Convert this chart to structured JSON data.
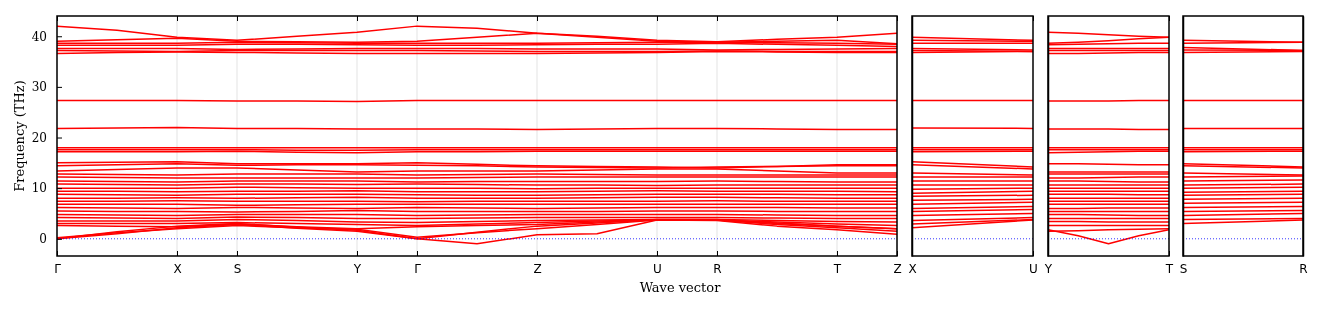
{
  "chart_data": [
    {
      "type": "line",
      "xlabel": "Wave vector",
      "ylabel": "Frequency (THz)",
      "grid": "x",
      "line_style": "solid",
      "marker": "none",
      "ylim": [
        -3.4,
        44
      ],
      "yticks": [
        0,
        10,
        20,
        30,
        40
      ],
      "categories": [
        "Γ",
        null,
        "X",
        "S",
        null,
        "Y",
        "Γ",
        null,
        "Z",
        null,
        "U",
        "R",
        null,
        "T",
        "Z"
      ],
      "ref_lines": [
        {
          "axis": "y",
          "value": 0,
          "color": "#0000ff",
          "line_style": "dotted"
        }
      ],
      "series": [
        {
          "color": "#ff0000",
          "values": [
            42.0,
            41.2,
            39.8,
            39.2,
            40.0,
            40.8,
            42.0,
            41.6,
            40.6,
            40.0,
            39.2,
            38.9,
            39.4,
            39.8,
            40.6
          ]
        },
        {
          "color": "#ff0000",
          "values": [
            39.0,
            39.3,
            39.6,
            39.0,
            38.9,
            38.8,
            39.0,
            39.8,
            40.6,
            39.8,
            39.0,
            38.8,
            39.0,
            39.2,
            38.5
          ]
        },
        {
          "color": "#ff0000",
          "values": [
            38.6,
            38.6,
            38.6,
            38.8,
            38.7,
            38.6,
            38.6,
            38.6,
            38.6,
            38.7,
            38.8,
            38.8,
            38.7,
            38.6,
            38.4
          ]
        },
        {
          "color": "#ff0000",
          "values": [
            38.2,
            38.2,
            38.2,
            38.4,
            38.4,
            38.3,
            38.2,
            38.2,
            38.3,
            38.4,
            38.4,
            38.6,
            38.4,
            38.2,
            38.0
          ]
        },
        {
          "color": "#ff0000",
          "values": [
            37.6,
            37.6,
            37.6,
            37.4,
            37.5,
            37.6,
            37.6,
            37.6,
            37.5,
            37.5,
            37.5,
            37.3,
            37.4,
            37.5,
            37.6
          ]
        },
        {
          "color": "#ff0000",
          "values": [
            37.2,
            37.1,
            37.0,
            37.2,
            37.2,
            37.2,
            37.2,
            37.1,
            37.0,
            37.0,
            37.0,
            37.1,
            37.0,
            37.0,
            37.0
          ]
        },
        {
          "color": "#ff0000",
          "values": [
            36.6,
            36.8,
            36.9,
            36.8,
            36.7,
            36.6,
            36.6,
            36.6,
            36.6,
            36.7,
            36.8,
            37.0,
            36.9,
            36.8,
            36.8
          ]
        },
        {
          "color": "#ff0000",
          "values": [
            27.3,
            27.3,
            27.3,
            27.2,
            27.2,
            27.1,
            27.3,
            27.3,
            27.3,
            27.3,
            27.3,
            27.3,
            27.3,
            27.3,
            27.3
          ]
        },
        {
          "color": "#ff0000",
          "values": [
            21.8,
            21.9,
            22.0,
            21.8,
            21.8,
            21.7,
            21.7,
            21.7,
            21.6,
            21.7,
            21.8,
            21.8,
            21.7,
            21.6,
            21.6
          ]
        },
        {
          "color": "#ff0000",
          "values": [
            18.0,
            18.0,
            18.0,
            18.0,
            18.0,
            18.0,
            18.0,
            18.0,
            18.0,
            18.0,
            18.0,
            18.0,
            18.0,
            18.0,
            18.0
          ]
        },
        {
          "color": "#ff0000",
          "values": [
            17.6,
            17.6,
            17.6,
            17.6,
            17.5,
            17.5,
            17.6,
            17.6,
            17.6,
            17.6,
            17.6,
            17.6,
            17.6,
            17.6,
            17.6
          ]
        },
        {
          "color": "#ff0000",
          "values": [
            17.2,
            17.2,
            17.2,
            17.3,
            17.1,
            17.0,
            17.2,
            17.2,
            17.3,
            17.3,
            17.3,
            17.3,
            17.3,
            17.3,
            17.3
          ]
        },
        {
          "color": "#ff0000",
          "values": [
            15.0,
            15.1,
            15.2,
            14.8,
            14.8,
            14.8,
            15.0,
            14.7,
            14.4,
            14.3,
            14.2,
            14.0,
            14.3,
            14.6,
            14.6
          ]
        },
        {
          "color": "#ff0000",
          "values": [
            14.4,
            14.6,
            14.8,
            14.5,
            14.6,
            14.6,
            14.5,
            14.4,
            14.2,
            14.1,
            14.0,
            14.2,
            14.3,
            14.4,
            14.4
          ]
        },
        {
          "color": "#ff0000",
          "values": [
            13.4,
            13.7,
            14.0,
            14.0,
            13.6,
            13.2,
            13.4,
            13.4,
            13.4,
            13.6,
            13.8,
            13.8,
            13.4,
            13.0,
            13.0
          ]
        },
        {
          "color": "#ff0000",
          "values": [
            12.8,
            12.7,
            12.6,
            12.8,
            12.8,
            12.8,
            12.6,
            12.7,
            12.8,
            12.7,
            12.6,
            12.6,
            12.6,
            12.6,
            12.6
          ]
        },
        {
          "color": "#ff0000",
          "values": [
            12.2,
            12.1,
            12.0,
            12.0,
            12.0,
            12.0,
            12.0,
            12.1,
            12.2,
            12.2,
            12.2,
            12.2,
            12.2,
            12.2,
            12.2
          ]
        },
        {
          "color": "#ff0000",
          "values": [
            11.4,
            11.3,
            11.2,
            11.4,
            11.4,
            11.4,
            11.2,
            11.3,
            11.3,
            11.3,
            11.3,
            11.4,
            11.3,
            11.2,
            11.2
          ]
        },
        {
          "color": "#ff0000",
          "values": [
            10.8,
            10.7,
            10.6,
            10.8,
            10.8,
            10.7,
            10.8,
            10.7,
            10.6,
            10.6,
            10.5,
            10.6,
            10.6,
            10.6,
            10.6
          ]
        },
        {
          "color": "#ff0000",
          "values": [
            10.0,
            10.0,
            10.0,
            10.2,
            10.1,
            10.0,
            10.0,
            10.0,
            9.9,
            10.0,
            10.0,
            10.0,
            10.0,
            10.0,
            10.0
          ]
        },
        {
          "color": "#ff0000",
          "values": [
            9.4,
            9.4,
            9.3,
            9.4,
            9.4,
            9.5,
            9.3,
            9.3,
            9.3,
            9.4,
            9.5,
            9.4,
            9.4,
            9.4,
            9.3
          ]
        },
        {
          "color": "#ff0000",
          "values": [
            8.8,
            8.7,
            8.6,
            8.8,
            8.8,
            8.8,
            8.7,
            8.6,
            8.6,
            8.7,
            8.8,
            8.8,
            8.8,
            8.7,
            8.7
          ]
        },
        {
          "color": "#ff0000",
          "values": [
            8.0,
            8.0,
            8.1,
            8.0,
            8.1,
            8.2,
            8.0,
            8.0,
            8.0,
            8.1,
            8.2,
            8.2,
            8.1,
            8.0,
            8.0
          ]
        },
        {
          "color": "#ff0000",
          "values": [
            7.4,
            7.4,
            7.5,
            7.4,
            7.4,
            7.4,
            7.3,
            7.4,
            7.4,
            7.4,
            7.4,
            7.5,
            7.4,
            7.4,
            7.4
          ]
        },
        {
          "color": "#ff0000",
          "values": [
            6.8,
            6.8,
            6.8,
            6.6,
            6.7,
            6.8,
            6.8,
            6.8,
            6.8,
            6.8,
            6.8,
            6.8,
            6.8,
            6.8,
            6.8
          ]
        },
        {
          "color": "#ff0000",
          "values": [
            6.2,
            6.1,
            6.0,
            6.2,
            6.1,
            6.0,
            6.2,
            6.1,
            6.0,
            6.1,
            6.2,
            6.2,
            6.2,
            6.1,
            6.1
          ]
        },
        {
          "color": "#ff0000",
          "values": [
            5.5,
            5.4,
            5.4,
            5.3,
            5.4,
            5.6,
            5.4,
            5.4,
            5.4,
            5.4,
            5.5,
            5.5,
            5.4,
            5.4,
            5.4
          ]
        },
        {
          "color": "#ff0000",
          "values": [
            4.8,
            4.7,
            4.6,
            4.8,
            4.8,
            4.8,
            4.6,
            4.7,
            4.8,
            4.8,
            4.8,
            4.8,
            4.7,
            4.6,
            4.6
          ]
        },
        {
          "color": "#ff0000",
          "values": [
            4.2,
            4.1,
            4.0,
            4.3,
            4.2,
            4.0,
            4.0,
            4.1,
            4.2,
            4.2,
            4.2,
            4.2,
            4.1,
            4.0,
            4.0
          ]
        },
        {
          "color": "#ff0000",
          "values": [
            3.5,
            3.5,
            3.5,
            3.8,
            3.6,
            3.3,
            3.2,
            3.4,
            3.6,
            3.7,
            3.8,
            3.8,
            3.6,
            3.4,
            3.3
          ]
        },
        {
          "color": "#ff0000",
          "values": [
            3.0,
            3.0,
            3.0,
            3.2,
            3.0,
            2.8,
            2.6,
            2.9,
            3.2,
            3.5,
            3.7,
            3.7,
            3.3,
            2.9,
            2.6
          ]
        },
        {
          "color": "#ff0000",
          "values": [
            2.6,
            2.5,
            2.4,
            2.9,
            2.4,
            2.0,
            2.4,
            2.6,
            2.8,
            3.3,
            3.7,
            3.7,
            3.1,
            2.5,
            2.0
          ]
        },
        {
          "color": "#ff0000",
          "values": [
            0,
            1.4,
            2.5,
            3.0,
            2.3,
            1.7,
            0,
            1.3,
            2.5,
            3.1,
            3.8,
            3.8,
            3.0,
            2.5,
            2.0
          ]
        },
        {
          "color": "#ff0000",
          "values": [
            0.2,
            1.2,
            2.0,
            2.6,
            2.2,
            1.9,
            0.3,
            1.2,
            2.0,
            2.8,
            3.7,
            3.7,
            2.8,
            2.2,
            1.5
          ]
        },
        {
          "color": "#ff0000",
          "values": [
            0,
            1.0,
            2.2,
            2.8,
            2.1,
            1.5,
            0,
            -1.0,
            0.8,
            1.0,
            3.7,
            3.6,
            2.5,
            1.8,
            0.9
          ]
        }
      ]
    },
    {
      "type": "line",
      "line_style": "solid",
      "marker": "none",
      "tick_labels": "x",
      "ylim": [
        -3.4,
        44
      ],
      "categories": [
        "X",
        "U"
      ],
      "ref_lines": [
        {
          "axis": "y",
          "value": 0,
          "color": "#0000ff",
          "line_style": "dotted"
        }
      ],
      "series": [
        {
          "color": "#ff0000",
          "values": [
            39.8,
            39.2
          ]
        },
        {
          "color": "#ff0000",
          "values": [
            39.2,
            39.0
          ]
        },
        {
          "color": "#ff0000",
          "values": [
            38.6,
            38.6
          ]
        },
        {
          "color": "#ff0000",
          "values": [
            37.6,
            37.3
          ]
        },
        {
          "color": "#ff0000",
          "values": [
            37.2,
            37.0
          ]
        },
        {
          "color": "#ff0000",
          "values": [
            36.8,
            37.0
          ]
        },
        {
          "color": "#ff0000",
          "values": [
            27.3,
            27.3
          ]
        },
        {
          "color": "#ff0000",
          "values": [
            21.9,
            21.8
          ]
        },
        {
          "color": "#ff0000",
          "values": [
            18.0,
            18.0
          ]
        },
        {
          "color": "#ff0000",
          "values": [
            17.6,
            17.6
          ]
        },
        {
          "color": "#ff0000",
          "values": [
            17.2,
            17.3
          ]
        },
        {
          "color": "#ff0000",
          "values": [
            15.2,
            14.2
          ]
        },
        {
          "color": "#ff0000",
          "values": [
            14.6,
            13.8
          ]
        },
        {
          "color": "#ff0000",
          "values": [
            13.0,
            12.6
          ]
        },
        {
          "color": "#ff0000",
          "values": [
            12.2,
            12.2
          ]
        },
        {
          "color": "#ff0000",
          "values": [
            11.4,
            11.4
          ]
        },
        {
          "color": "#ff0000",
          "values": [
            10.6,
            10.6
          ]
        },
        {
          "color": "#ff0000",
          "values": [
            9.8,
            10.0
          ]
        },
        {
          "color": "#ff0000",
          "values": [
            9.0,
            9.4
          ]
        },
        {
          "color": "#ff0000",
          "values": [
            8.4,
            8.6
          ]
        },
        {
          "color": "#ff0000",
          "values": [
            7.6,
            7.8
          ]
        },
        {
          "color": "#ff0000",
          "values": [
            6.8,
            7.2
          ]
        },
        {
          "color": "#ff0000",
          "values": [
            6.0,
            6.4
          ]
        },
        {
          "color": "#ff0000",
          "values": [
            5.4,
            5.8
          ]
        },
        {
          "color": "#ff0000",
          "values": [
            4.6,
            5.0
          ]
        },
        {
          "color": "#ff0000",
          "values": [
            3.6,
            4.2
          ]
        },
        {
          "color": "#ff0000",
          "values": [
            2.9,
            3.8
          ]
        },
        {
          "color": "#ff0000",
          "values": [
            2.2,
            3.7
          ]
        }
      ]
    },
    {
      "type": "line",
      "line_style": "solid",
      "marker": "none",
      "tick_labels": "x",
      "ylim": [
        -3.4,
        44
      ],
      "categories": [
        "Y",
        null,
        null,
        null,
        "T"
      ],
      "ref_lines": [
        {
          "axis": "y",
          "value": 0,
          "color": "#0000ff",
          "line_style": "dotted"
        }
      ],
      "series": [
        {
          "color": "#ff0000",
          "values": [
            40.8,
            40.6,
            40.3,
            40.0,
            39.8
          ]
        },
        {
          "color": "#ff0000",
          "values": [
            38.6,
            38.8,
            39.1,
            39.5,
            39.8
          ]
        },
        {
          "color": "#ff0000",
          "values": [
            38.3,
            38.4,
            38.5,
            38.6,
            38.6
          ]
        },
        {
          "color": "#ff0000",
          "values": [
            37.6,
            37.6,
            37.6,
            37.6,
            37.6
          ]
        },
        {
          "color": "#ff0000",
          "values": [
            37.2,
            37.2,
            37.2,
            37.2,
            37.2
          ]
        },
        {
          "color": "#ff0000",
          "values": [
            36.6,
            36.6,
            36.7,
            36.8,
            36.8
          ]
        },
        {
          "color": "#ff0000",
          "values": [
            27.2,
            27.2,
            27.2,
            27.3,
            27.3
          ]
        },
        {
          "color": "#ff0000",
          "values": [
            21.7,
            21.7,
            21.7,
            21.6,
            21.6
          ]
        },
        {
          "color": "#ff0000",
          "values": [
            18.0,
            18.0,
            18.0,
            18.0,
            18.0
          ]
        },
        {
          "color": "#ff0000",
          "values": [
            17.6,
            17.6,
            17.6,
            17.6,
            17.6
          ]
        },
        {
          "color": "#ff0000",
          "values": [
            17.0,
            17.1,
            17.2,
            17.3,
            17.3
          ]
        },
        {
          "color": "#ff0000",
          "values": [
            14.8,
            14.8,
            14.7,
            14.6,
            14.6
          ]
        },
        {
          "color": "#ff0000",
          "values": [
            13.2,
            13.2,
            13.2,
            13.2,
            13.2
          ]
        },
        {
          "color": "#ff0000",
          "values": [
            12.8,
            12.8,
            12.8,
            12.8,
            12.8
          ]
        },
        {
          "color": "#ff0000",
          "values": [
            12.0,
            12.0,
            12.1,
            12.2,
            12.2
          ]
        },
        {
          "color": "#ff0000",
          "values": [
            11.4,
            11.4,
            11.3,
            11.2,
            11.2
          ]
        },
        {
          "color": "#ff0000",
          "values": [
            10.6,
            10.6,
            10.6,
            10.6,
            10.6
          ]
        },
        {
          "color": "#ff0000",
          "values": [
            10.0,
            10.0,
            10.0,
            10.0,
            10.0
          ]
        },
        {
          "color": "#ff0000",
          "values": [
            9.4,
            9.4,
            9.4,
            9.4,
            9.4
          ]
        },
        {
          "color": "#ff0000",
          "values": [
            8.8,
            8.8,
            8.8,
            8.7,
            8.7
          ]
        },
        {
          "color": "#ff0000",
          "values": [
            8.0,
            8.0,
            8.0,
            8.0,
            8.0
          ]
        },
        {
          "color": "#ff0000",
          "values": [
            7.4,
            7.4,
            7.4,
            7.4,
            7.4
          ]
        },
        {
          "color": "#ff0000",
          "values": [
            6.8,
            6.8,
            6.8,
            6.8,
            6.8
          ]
        },
        {
          "color": "#ff0000",
          "values": [
            6.0,
            6.0,
            6.1,
            6.1,
            6.1
          ]
        },
        {
          "color": "#ff0000",
          "values": [
            5.4,
            5.4,
            5.4,
            5.4,
            5.4
          ]
        },
        {
          "color": "#ff0000",
          "values": [
            4.8,
            4.8,
            4.7,
            4.6,
            4.6
          ]
        },
        {
          "color": "#ff0000",
          "values": [
            4.0,
            4.0,
            4.0,
            4.0,
            4.0
          ]
        },
        {
          "color": "#ff0000",
          "values": [
            3.4,
            3.4,
            3.3,
            3.3,
            3.3
          ]
        },
        {
          "color": "#ff0000",
          "values": [
            2.6,
            2.6,
            2.6,
            2.6,
            2.6
          ]
        },
        {
          "color": "#ff0000",
          "values": [
            1.5,
            1.6,
            1.8,
            1.9,
            2.0
          ]
        },
        {
          "color": "#ff0000",
          "values": [
            1.8,
            0.6,
            -1.0,
            0.6,
            1.8
          ]
        }
      ]
    },
    {
      "type": "line",
      "line_style": "solid",
      "marker": "none",
      "tick_labels": "x",
      "ylim": [
        -3.4,
        44
      ],
      "categories": [
        "S",
        "R"
      ],
      "ref_lines": [
        {
          "axis": "y",
          "value": 0,
          "color": "#0000ff",
          "line_style": "dotted"
        }
      ],
      "series": [
        {
          "color": "#ff0000",
          "values": [
            39.2,
            38.8
          ]
        },
        {
          "color": "#ff0000",
          "values": [
            38.6,
            38.8
          ]
        },
        {
          "color": "#ff0000",
          "values": [
            37.8,
            37.2
          ]
        },
        {
          "color": "#ff0000",
          "values": [
            37.3,
            37.2
          ]
        },
        {
          "color": "#ff0000",
          "values": [
            36.8,
            37.0
          ]
        },
        {
          "color": "#ff0000",
          "values": [
            27.3,
            27.3
          ]
        },
        {
          "color": "#ff0000",
          "values": [
            21.8,
            21.8
          ]
        },
        {
          "color": "#ff0000",
          "values": [
            18.0,
            18.0
          ]
        },
        {
          "color": "#ff0000",
          "values": [
            17.6,
            17.6
          ]
        },
        {
          "color": "#ff0000",
          "values": [
            17.2,
            17.3
          ]
        },
        {
          "color": "#ff0000",
          "values": [
            14.8,
            14.2
          ]
        },
        {
          "color": "#ff0000",
          "values": [
            14.4,
            14.0
          ]
        },
        {
          "color": "#ff0000",
          "values": [
            13.0,
            12.6
          ]
        },
        {
          "color": "#ff0000",
          "values": [
            12.2,
            12.4
          ]
        },
        {
          "color": "#ff0000",
          "values": [
            11.4,
            11.6
          ]
        },
        {
          "color": "#ff0000",
          "values": [
            10.6,
            10.8
          ]
        },
        {
          "color": "#ff0000",
          "values": [
            10.0,
            10.2
          ]
        },
        {
          "color": "#ff0000",
          "values": [
            9.2,
            9.4
          ]
        },
        {
          "color": "#ff0000",
          "values": [
            8.6,
            8.8
          ]
        },
        {
          "color": "#ff0000",
          "values": [
            7.8,
            8.0
          ]
        },
        {
          "color": "#ff0000",
          "values": [
            7.0,
            7.2
          ]
        },
        {
          "color": "#ff0000",
          "values": [
            6.2,
            6.4
          ]
        },
        {
          "color": "#ff0000",
          "values": [
            5.4,
            5.6
          ]
        },
        {
          "color": "#ff0000",
          "values": [
            4.6,
            5.0
          ]
        },
        {
          "color": "#ff0000",
          "values": [
            3.8,
            4.0
          ]
        },
        {
          "color": "#ff0000",
          "values": [
            3.0,
            3.7
          ]
        }
      ]
    }
  ]
}
